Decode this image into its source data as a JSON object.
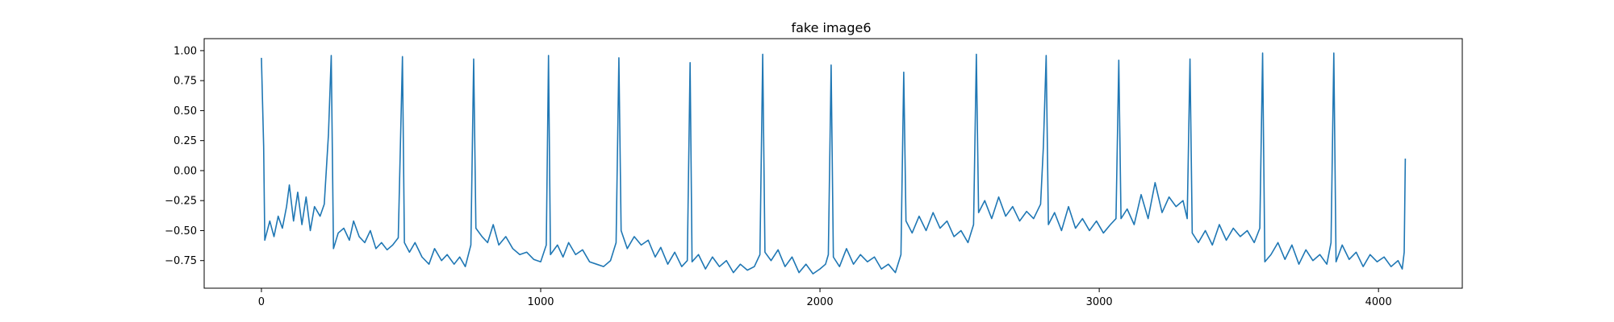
{
  "chart_data": {
    "type": "line",
    "title": "fake image6",
    "xlabel": "",
    "ylabel": "",
    "xlim": [
      -205,
      4300
    ],
    "ylim": [
      -0.98,
      1.1
    ],
    "x_ticks": [
      0,
      1000,
      2000,
      3000,
      4000
    ],
    "x_tick_labels": [
      "0",
      "1000",
      "2000",
      "3000",
      "4000"
    ],
    "y_ticks": [
      1.0,
      0.75,
      0.5,
      0.25,
      0.0,
      -0.25,
      -0.5,
      -0.75
    ],
    "y_tick_labels": [
      "1.00",
      "0.75",
      "0.50",
      "0.25",
      "0.00",
      "−0.25",
      "−0.50",
      "−0.75"
    ],
    "grid": false,
    "legend": "none",
    "colors": {
      "line": "#1f77b4",
      "axes": "#000000",
      "background": "#ffffff"
    },
    "series": [
      {
        "points": [
          [
            0,
            0.94
          ],
          [
            8,
            0.2
          ],
          [
            12,
            -0.58
          ],
          [
            30,
            -0.42
          ],
          [
            45,
            -0.55
          ],
          [
            60,
            -0.38
          ],
          [
            75,
            -0.48
          ],
          [
            90,
            -0.3
          ],
          [
            100,
            -0.12
          ],
          [
            115,
            -0.42
          ],
          [
            130,
            -0.18
          ],
          [
            145,
            -0.45
          ],
          [
            160,
            -0.22
          ],
          [
            175,
            -0.5
          ],
          [
            190,
            -0.3
          ],
          [
            210,
            -0.38
          ],
          [
            225,
            -0.28
          ],
          [
            240,
            0.3
          ],
          [
            250,
            0.96
          ],
          [
            258,
            -0.65
          ],
          [
            275,
            -0.52
          ],
          [
            295,
            -0.48
          ],
          [
            315,
            -0.58
          ],
          [
            330,
            -0.42
          ],
          [
            350,
            -0.55
          ],
          [
            370,
            -0.6
          ],
          [
            390,
            -0.5
          ],
          [
            410,
            -0.65
          ],
          [
            430,
            -0.6
          ],
          [
            450,
            -0.66
          ],
          [
            470,
            -0.62
          ],
          [
            490,
            -0.56
          ],
          [
            505,
            0.95
          ],
          [
            512,
            -0.6
          ],
          [
            530,
            -0.68
          ],
          [
            550,
            -0.6
          ],
          [
            575,
            -0.72
          ],
          [
            600,
            -0.78
          ],
          [
            620,
            -0.65
          ],
          [
            645,
            -0.75
          ],
          [
            665,
            -0.7
          ],
          [
            690,
            -0.78
          ],
          [
            710,
            -0.72
          ],
          [
            730,
            -0.8
          ],
          [
            750,
            -0.62
          ],
          [
            760,
            0.93
          ],
          [
            768,
            -0.48
          ],
          [
            790,
            -0.55
          ],
          [
            810,
            -0.6
          ],
          [
            830,
            -0.45
          ],
          [
            850,
            -0.62
          ],
          [
            875,
            -0.55
          ],
          [
            900,
            -0.65
          ],
          [
            925,
            -0.7
          ],
          [
            950,
            -0.68
          ],
          [
            975,
            -0.74
          ],
          [
            1000,
            -0.76
          ],
          [
            1020,
            -0.62
          ],
          [
            1028,
            0.96
          ],
          [
            1035,
            -0.7
          ],
          [
            1060,
            -0.62
          ],
          [
            1080,
            -0.72
          ],
          [
            1100,
            -0.6
          ],
          [
            1125,
            -0.7
          ],
          [
            1150,
            -0.66
          ],
          [
            1175,
            -0.76
          ],
          [
            1200,
            -0.78
          ],
          [
            1225,
            -0.8
          ],
          [
            1250,
            -0.75
          ],
          [
            1270,
            -0.6
          ],
          [
            1280,
            0.94
          ],
          [
            1288,
            -0.5
          ],
          [
            1310,
            -0.65
          ],
          [
            1335,
            -0.55
          ],
          [
            1360,
            -0.62
          ],
          [
            1385,
            -0.58
          ],
          [
            1410,
            -0.72
          ],
          [
            1430,
            -0.64
          ],
          [
            1455,
            -0.78
          ],
          [
            1480,
            -0.68
          ],
          [
            1505,
            -0.8
          ],
          [
            1525,
            -0.75
          ],
          [
            1535,
            0.9
          ],
          [
            1542,
            -0.76
          ],
          [
            1565,
            -0.7
          ],
          [
            1590,
            -0.82
          ],
          [
            1615,
            -0.72
          ],
          [
            1640,
            -0.8
          ],
          [
            1665,
            -0.75
          ],
          [
            1690,
            -0.85
          ],
          [
            1715,
            -0.78
          ],
          [
            1740,
            -0.83
          ],
          [
            1765,
            -0.8
          ],
          [
            1785,
            -0.7
          ],
          [
            1795,
            0.97
          ],
          [
            1803,
            -0.68
          ],
          [
            1825,
            -0.75
          ],
          [
            1850,
            -0.66
          ],
          [
            1875,
            -0.8
          ],
          [
            1900,
            -0.72
          ],
          [
            1925,
            -0.85
          ],
          [
            1950,
            -0.78
          ],
          [
            1975,
            -0.86
          ],
          [
            2000,
            -0.82
          ],
          [
            2020,
            -0.78
          ],
          [
            2030,
            -0.7
          ],
          [
            2040,
            0.88
          ],
          [
            2048,
            -0.72
          ],
          [
            2070,
            -0.8
          ],
          [
            2095,
            -0.65
          ],
          [
            2120,
            -0.78
          ],
          [
            2145,
            -0.7
          ],
          [
            2170,
            -0.76
          ],
          [
            2195,
            -0.72
          ],
          [
            2220,
            -0.82
          ],
          [
            2245,
            -0.78
          ],
          [
            2270,
            -0.85
          ],
          [
            2290,
            -0.7
          ],
          [
            2300,
            0.82
          ],
          [
            2308,
            -0.42
          ],
          [
            2330,
            -0.52
          ],
          [
            2355,
            -0.38
          ],
          [
            2380,
            -0.5
          ],
          [
            2405,
            -0.35
          ],
          [
            2430,
            -0.48
          ],
          [
            2455,
            -0.42
          ],
          [
            2480,
            -0.55
          ],
          [
            2505,
            -0.5
          ],
          [
            2530,
            -0.6
          ],
          [
            2550,
            -0.45
          ],
          [
            2560,
            0.97
          ],
          [
            2568,
            -0.35
          ],
          [
            2590,
            -0.25
          ],
          [
            2615,
            -0.4
          ],
          [
            2640,
            -0.22
          ],
          [
            2665,
            -0.38
          ],
          [
            2690,
            -0.3
          ],
          [
            2715,
            -0.42
          ],
          [
            2740,
            -0.34
          ],
          [
            2765,
            -0.4
          ],
          [
            2790,
            -0.28
          ],
          [
            2800,
            0.2
          ],
          [
            2810,
            0.96
          ],
          [
            2818,
            -0.45
          ],
          [
            2840,
            -0.35
          ],
          [
            2865,
            -0.5
          ],
          [
            2890,
            -0.3
          ],
          [
            2915,
            -0.48
          ],
          [
            2940,
            -0.4
          ],
          [
            2965,
            -0.5
          ],
          [
            2990,
            -0.42
          ],
          [
            3015,
            -0.52
          ],
          [
            3040,
            -0.45
          ],
          [
            3060,
            -0.4
          ],
          [
            3070,
            0.92
          ],
          [
            3078,
            -0.4
          ],
          [
            3100,
            -0.32
          ],
          [
            3125,
            -0.45
          ],
          [
            3150,
            -0.2
          ],
          [
            3175,
            -0.4
          ],
          [
            3200,
            -0.1
          ],
          [
            3225,
            -0.35
          ],
          [
            3250,
            -0.22
          ],
          [
            3275,
            -0.3
          ],
          [
            3300,
            -0.25
          ],
          [
            3315,
            -0.4
          ],
          [
            3325,
            0.93
          ],
          [
            3333,
            -0.52
          ],
          [
            3355,
            -0.6
          ],
          [
            3380,
            -0.5
          ],
          [
            3405,
            -0.62
          ],
          [
            3430,
            -0.45
          ],
          [
            3455,
            -0.58
          ],
          [
            3480,
            -0.48
          ],
          [
            3505,
            -0.55
          ],
          [
            3530,
            -0.5
          ],
          [
            3555,
            -0.6
          ],
          [
            3575,
            -0.48
          ],
          [
            3585,
            0.98
          ],
          [
            3593,
            -0.76
          ],
          [
            3615,
            -0.7
          ],
          [
            3640,
            -0.6
          ],
          [
            3665,
            -0.74
          ],
          [
            3690,
            -0.62
          ],
          [
            3715,
            -0.78
          ],
          [
            3740,
            -0.66
          ],
          [
            3765,
            -0.75
          ],
          [
            3790,
            -0.7
          ],
          [
            3815,
            -0.78
          ],
          [
            3830,
            -0.6
          ],
          [
            3840,
            0.98
          ],
          [
            3848,
            -0.76
          ],
          [
            3870,
            -0.62
          ],
          [
            3895,
            -0.74
          ],
          [
            3920,
            -0.68
          ],
          [
            3945,
            -0.8
          ],
          [
            3970,
            -0.7
          ],
          [
            3995,
            -0.76
          ],
          [
            4020,
            -0.72
          ],
          [
            4045,
            -0.8
          ],
          [
            4070,
            -0.75
          ],
          [
            4085,
            -0.82
          ],
          [
            4092,
            -0.68
          ],
          [
            4096,
            0.1
          ]
        ]
      }
    ]
  }
}
